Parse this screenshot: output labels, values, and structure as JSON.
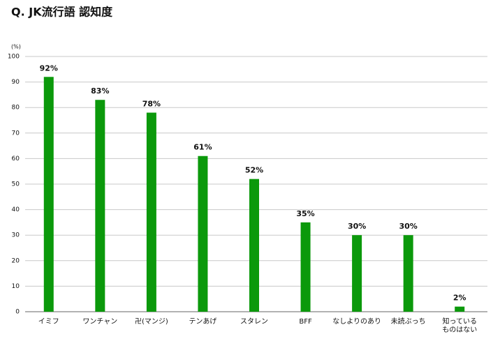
{
  "chart_data": {
    "type": "bar",
    "title": "Q. JK流行語 認知度",
    "y_unit": "(%)",
    "categories": [
      "イミフ",
      "ワンチャン",
      "卍(マンジ)",
      "テンあげ",
      "スタレン",
      "BFF",
      "なしよりのあり",
      "未読ぶっち",
      "知っている\nものはない"
    ],
    "values": [
      92,
      83,
      78,
      61,
      52,
      35,
      30,
      30,
      2
    ],
    "value_labels": [
      "92%",
      "83%",
      "78%",
      "61%",
      "52%",
      "35%",
      "30%",
      "30%",
      "2%"
    ],
    "color": "#0b990b",
    "ylim": [
      0,
      100
    ],
    "yticks": [
      0,
      10,
      20,
      30,
      40,
      50,
      60,
      70,
      80,
      90,
      100
    ],
    "grid": true
  }
}
